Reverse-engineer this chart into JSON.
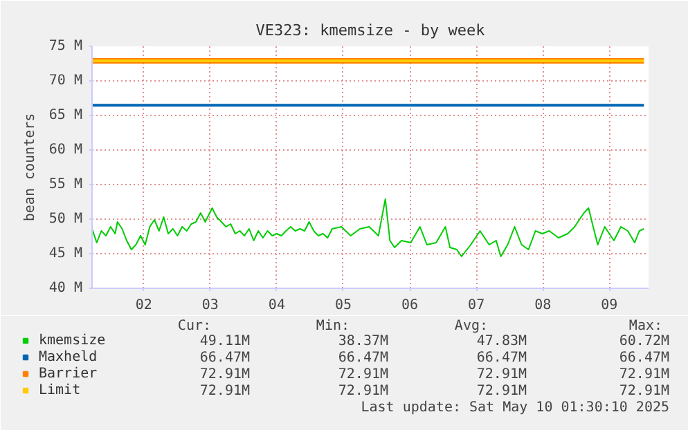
{
  "chart_data": {
    "type": "line",
    "title": "VE323: kmemsize - by week",
    "ylabel": "bean counters",
    "xlim": [
      1.222,
      9.59
    ],
    "ylim": [
      40,
      75
    ],
    "xticks": [
      {
        "value": 2,
        "label": "02"
      },
      {
        "value": 3,
        "label": "03"
      },
      {
        "value": 4,
        "label": "04"
      },
      {
        "value": 5,
        "label": "05"
      },
      {
        "value": 6,
        "label": "06"
      },
      {
        "value": 7,
        "label": "07"
      },
      {
        "value": 8,
        "label": "08"
      },
      {
        "value": 9,
        "label": "09"
      }
    ],
    "yticks": [
      {
        "value": 40,
        "label": "40 M"
      },
      {
        "value": 45,
        "label": "45 M"
      },
      {
        "value": 50,
        "label": "50 M"
      },
      {
        "value": 55,
        "label": "55 M"
      },
      {
        "value": 60,
        "label": "60 M"
      },
      {
        "value": 65,
        "label": "65 M"
      },
      {
        "value": 70,
        "label": "70 M"
      },
      {
        "value": 75,
        "label": "75 M"
      }
    ],
    "grid": true,
    "legend": "bottom left",
    "marker": "none",
    "line_style": "solid",
    "x": [
      1.222,
      1.292,
      1.361,
      1.431,
      1.5,
      1.569,
      1.604,
      1.674,
      1.743,
      1.813,
      1.882,
      1.951,
      2.021,
      2.09,
      2.16,
      2.229,
      2.299,
      2.368,
      2.438,
      2.507,
      2.576,
      2.646,
      2.715,
      2.785,
      2.854,
      2.924,
      3.028,
      3.097,
      3.167,
      3.236,
      3.306,
      3.375,
      3.444,
      3.514,
      3.583,
      3.653,
      3.722,
      3.792,
      3.861,
      3.931,
      4.0,
      4.069,
      4.139,
      4.208,
      4.278,
      4.347,
      4.417,
      4.486,
      4.556,
      4.625,
      4.694,
      4.764,
      4.833,
      4.972,
      5.111,
      5.25,
      5.389,
      5.528,
      5.632,
      5.701,
      5.771,
      5.875,
      6.014,
      6.153,
      6.257,
      6.396,
      6.535,
      6.604,
      6.708,
      6.778,
      6.917,
      7.056,
      7.194,
      7.299,
      7.368,
      7.472,
      7.576,
      7.681,
      7.785,
      7.889,
      7.993,
      8.097,
      8.236,
      8.375,
      8.479,
      8.618,
      8.688,
      8.757,
      8.826,
      8.931,
      9.069,
      9.174,
      9.278,
      9.382,
      9.451,
      9.521
    ],
    "series": [
      {
        "name": "kmemsize",
        "color": "#00cc00",
        "values": [
          48.6,
          46.6,
          48.3,
          47.6,
          48.9,
          47.9,
          49.6,
          48.6,
          46.9,
          45.6,
          46.3,
          47.6,
          46.3,
          48.9,
          49.9,
          48.3,
          50.3,
          47.9,
          48.6,
          47.6,
          48.9,
          48.3,
          49.3,
          49.6,
          50.9,
          49.6,
          51.6,
          50.3,
          49.6,
          48.9,
          49.3,
          47.9,
          48.3,
          47.6,
          48.6,
          46.9,
          48.3,
          47.3,
          48.3,
          47.6,
          47.9,
          47.6,
          48.3,
          48.9,
          48.3,
          48.6,
          48.3,
          49.6,
          48.3,
          47.6,
          47.9,
          47.3,
          48.6,
          48.9,
          47.6,
          48.6,
          48.9,
          47.6,
          52.9,
          46.9,
          45.9,
          46.9,
          46.6,
          48.9,
          46.3,
          46.6,
          48.9,
          45.9,
          45.6,
          44.6,
          46.3,
          48.3,
          46.3,
          46.9,
          44.6,
          46.3,
          48.9,
          46.3,
          45.6,
          48.3,
          47.9,
          48.3,
          47.3,
          47.9,
          48.9,
          50.9,
          51.6,
          48.9,
          46.3,
          48.9,
          46.9,
          48.9,
          48.3,
          46.6,
          48.3,
          48.6
        ]
      },
      {
        "name": "Maxheld",
        "color": "#0066b3",
        "values": [
          66.47,
          66.47,
          66.47,
          66.47,
          66.47,
          66.47,
          66.47,
          66.47,
          66.47,
          66.47,
          66.47,
          66.47,
          66.47,
          66.47,
          66.47,
          66.47,
          66.47,
          66.47,
          66.47,
          66.47,
          66.47,
          66.47,
          66.47,
          66.47,
          66.47,
          66.47,
          66.47,
          66.47,
          66.47,
          66.47,
          66.47,
          66.47,
          66.47,
          66.47,
          66.47,
          66.47,
          66.47,
          66.47,
          66.47,
          66.47,
          66.47,
          66.47,
          66.47,
          66.47,
          66.47,
          66.47,
          66.47,
          66.47,
          66.47,
          66.47,
          66.47,
          66.47,
          66.47,
          66.47,
          66.47,
          66.47,
          66.47,
          66.47,
          66.47,
          66.47,
          66.47,
          66.47,
          66.47,
          66.47,
          66.47,
          66.47,
          66.47,
          66.47,
          66.47,
          66.47,
          66.47,
          66.47,
          66.47,
          66.47,
          66.47,
          66.47,
          66.47,
          66.47,
          66.47,
          66.47,
          66.47,
          66.47,
          66.47,
          66.47,
          66.47,
          66.47,
          66.47,
          66.47,
          66.47,
          66.47,
          66.47,
          66.47,
          66.47,
          66.47,
          66.47,
          66.47
        ]
      },
      {
        "name": "Barrier",
        "color": "#ff8000",
        "values": [
          72.91,
          72.91,
          72.91,
          72.91,
          72.91,
          72.91,
          72.91,
          72.91,
          72.91,
          72.91,
          72.91,
          72.91,
          72.91,
          72.91,
          72.91,
          72.91,
          72.91,
          72.91,
          72.91,
          72.91,
          72.91,
          72.91,
          72.91,
          72.91,
          72.91,
          72.91,
          72.91,
          72.91,
          72.91,
          72.91,
          72.91,
          72.91,
          72.91,
          72.91,
          72.91,
          72.91,
          72.91,
          72.91,
          72.91,
          72.91,
          72.91,
          72.91,
          72.91,
          72.91,
          72.91,
          72.91,
          72.91,
          72.91,
          72.91,
          72.91,
          72.91,
          72.91,
          72.91,
          72.91,
          72.91,
          72.91,
          72.91,
          72.91,
          72.91,
          72.91,
          72.91,
          72.91,
          72.91,
          72.91,
          72.91,
          72.91,
          72.91,
          72.91,
          72.91,
          72.91,
          72.91,
          72.91,
          72.91,
          72.91,
          72.91,
          72.91,
          72.91,
          72.91,
          72.91,
          72.91,
          72.91,
          72.91,
          72.91,
          72.91,
          72.91,
          72.91,
          72.91,
          72.91,
          72.91,
          72.91,
          72.91,
          72.91,
          72.91,
          72.91,
          72.91,
          72.91
        ]
      },
      {
        "name": "Limit",
        "color": "#ffcc00",
        "values": [
          72.91,
          72.91,
          72.91,
          72.91,
          72.91,
          72.91,
          72.91,
          72.91,
          72.91,
          72.91,
          72.91,
          72.91,
          72.91,
          72.91,
          72.91,
          72.91,
          72.91,
          72.91,
          72.91,
          72.91,
          72.91,
          72.91,
          72.91,
          72.91,
          72.91,
          72.91,
          72.91,
          72.91,
          72.91,
          72.91,
          72.91,
          72.91,
          72.91,
          72.91,
          72.91,
          72.91,
          72.91,
          72.91,
          72.91,
          72.91,
          72.91,
          72.91,
          72.91,
          72.91,
          72.91,
          72.91,
          72.91,
          72.91,
          72.91,
          72.91,
          72.91,
          72.91,
          72.91,
          72.91,
          72.91,
          72.91,
          72.91,
          72.91,
          72.91,
          72.91,
          72.91,
          72.91,
          72.91,
          72.91,
          72.91,
          72.91,
          72.91,
          72.91,
          72.91,
          72.91,
          72.91,
          72.91,
          72.91,
          72.91,
          72.91,
          72.91,
          72.91,
          72.91,
          72.91,
          72.91,
          72.91,
          72.91,
          72.91,
          72.91,
          72.91,
          72.91,
          72.91,
          72.91,
          72.91,
          72.91,
          72.91,
          72.91,
          72.91,
          72.91,
          72.91,
          72.91
        ]
      }
    ],
    "annotations": [
      "Cur:",
      "Min:",
      "Avg:",
      "Max:",
      "49.11M",
      "38.37M",
      "47.83M",
      "60.72M",
      "66.47M",
      "66.47M",
      "66.47M",
      "66.47M",
      "72.91M",
      "72.91M",
      "72.91M",
      "72.91M",
      "72.91M",
      "72.91M",
      "72.91M",
      "72.91M",
      "Last update: Sat May 10 01:30:10 2025"
    ]
  }
}
